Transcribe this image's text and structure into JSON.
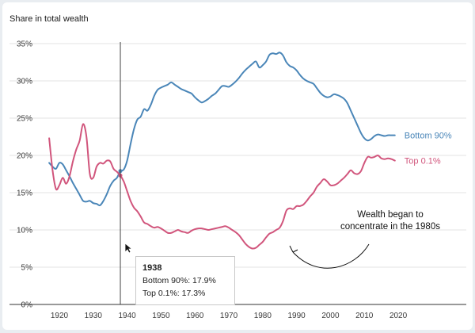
{
  "chart_data": {
    "type": "line",
    "ylabel": "Share in total wealth",
    "xlabel": "",
    "xlim": [
      1913,
      2034
    ],
    "ylim": [
      0,
      35
    ],
    "x_ticks": [
      1920,
      1930,
      1940,
      1950,
      1960,
      1970,
      1980,
      1990,
      2000,
      2010,
      2020
    ],
    "x_tick_labels": [
      "1920",
      "1930",
      "1940",
      "1950",
      "1960",
      "1970",
      "1980",
      "1990",
      "2000",
      "2010",
      "2020"
    ],
    "y_ticks": [
      0,
      5,
      10,
      15,
      20,
      25,
      30,
      35
    ],
    "y_tick_labels": [
      "0%",
      "5%",
      "10%",
      "15%",
      "20%",
      "25%",
      "30%",
      "35%"
    ],
    "grid": "horizontal",
    "series": [
      {
        "name": "Bottom 90%",
        "color": "#4a86b8",
        "x": [
          1917,
          1918,
          1919,
          1920,
          1921,
          1922,
          1923,
          1924,
          1925,
          1926,
          1927,
          1928,
          1929,
          1930,
          1931,
          1932,
          1933,
          1934,
          1935,
          1936,
          1937,
          1938,
          1939,
          1940,
          1941,
          1942,
          1943,
          1944,
          1945,
          1946,
          1947,
          1948,
          1949,
          1950,
          1951,
          1952,
          1953,
          1954,
          1955,
          1956,
          1957,
          1958,
          1959,
          1960,
          1961,
          1962,
          1963,
          1964,
          1965,
          1966,
          1967,
          1968,
          1969,
          1970,
          1971,
          1972,
          1973,
          1974,
          1975,
          1976,
          1977,
          1978,
          1979,
          1980,
          1981,
          1982,
          1983,
          1984,
          1985,
          1986,
          1987,
          1988,
          1989,
          1990,
          1991,
          1992,
          1993,
          1994,
          1995,
          1996,
          1997,
          1998,
          1999,
          2000,
          2001,
          2002,
          2003,
          2004,
          2005,
          2006,
          2007,
          2008,
          2009,
          2010,
          2011,
          2012,
          2013,
          2014,
          2015,
          2016,
          2017,
          2018,
          2019
        ],
        "y": [
          19.0,
          18.5,
          18.2,
          19.0,
          18.8,
          18.0,
          17.2,
          16.3,
          15.5,
          14.7,
          13.9,
          13.8,
          13.9,
          13.6,
          13.5,
          13.3,
          13.9,
          14.8,
          15.9,
          16.6,
          17.0,
          17.9,
          18.1,
          19.3,
          21.5,
          23.5,
          24.8,
          25.2,
          26.2,
          26.0,
          26.8,
          28.0,
          28.8,
          29.1,
          29.3,
          29.5,
          29.8,
          29.5,
          29.2,
          28.9,
          28.7,
          28.5,
          28.3,
          27.8,
          27.4,
          27.1,
          27.3,
          27.6,
          28.0,
          28.3,
          28.8,
          29.3,
          29.3,
          29.2,
          29.5,
          29.9,
          30.4,
          31.0,
          31.5,
          31.9,
          32.3,
          32.6,
          31.8,
          32.1,
          32.6,
          33.5,
          33.7,
          33.6,
          33.8,
          33.4,
          32.5,
          32.0,
          31.8,
          31.4,
          30.8,
          30.3,
          30.0,
          29.8,
          29.6,
          29.0,
          28.4,
          28.0,
          27.8,
          27.9,
          28.2,
          28.1,
          27.9,
          27.6,
          27.0,
          26.0,
          25.0,
          24.0,
          23.0,
          22.3,
          22.0,
          22.2,
          22.6,
          22.8,
          22.7,
          22.6,
          22.7,
          22.7,
          22.7
        ]
      },
      {
        "name": "Top 0.1%",
        "color": "#d1557c",
        "x": [
          1917,
          1918,
          1919,
          1920,
          1921,
          1922,
          1923,
          1924,
          1925,
          1926,
          1927,
          1928,
          1929,
          1930,
          1931,
          1932,
          1933,
          1934,
          1935,
          1936,
          1937,
          1938,
          1939,
          1940,
          1941,
          1942,
          1943,
          1944,
          1945,
          1946,
          1947,
          1948,
          1949,
          1950,
          1951,
          1952,
          1953,
          1954,
          1955,
          1956,
          1957,
          1958,
          1959,
          1960,
          1961,
          1962,
          1963,
          1964,
          1965,
          1966,
          1967,
          1968,
          1969,
          1970,
          1971,
          1972,
          1973,
          1974,
          1975,
          1976,
          1977,
          1978,
          1979,
          1980,
          1981,
          1982,
          1983,
          1984,
          1985,
          1986,
          1987,
          1988,
          1989,
          1990,
          1991,
          1992,
          1993,
          1994,
          1995,
          1996,
          1997,
          1998,
          1999,
          2000,
          2001,
          2002,
          2003,
          2004,
          2005,
          2006,
          2007,
          2008,
          2009,
          2010,
          2011,
          2012,
          2013,
          2014,
          2015,
          2016,
          2017,
          2018,
          2019
        ],
        "y": [
          22.3,
          18.0,
          15.5,
          16.0,
          17.0,
          16.2,
          17.2,
          19.2,
          20.8,
          22.0,
          24.2,
          22.5,
          17.5,
          17.0,
          18.5,
          19.0,
          18.9,
          19.3,
          19.2,
          18.2,
          17.8,
          17.3,
          16.5,
          15.2,
          13.9,
          13.0,
          12.5,
          11.8,
          11.0,
          10.8,
          10.5,
          10.3,
          10.4,
          10.2,
          9.9,
          9.6,
          9.6,
          9.8,
          10.0,
          9.8,
          9.7,
          9.6,
          9.9,
          10.1,
          10.2,
          10.2,
          10.1,
          10.0,
          10.1,
          10.2,
          10.3,
          10.4,
          10.5,
          10.3,
          10.0,
          9.7,
          9.3,
          8.7,
          8.1,
          7.7,
          7.5,
          7.6,
          8.0,
          8.4,
          9.0,
          9.5,
          9.7,
          10.0,
          10.3,
          11.2,
          12.6,
          12.9,
          12.8,
          13.2,
          13.2,
          13.4,
          13.9,
          14.5,
          15.0,
          15.8,
          16.3,
          16.8,
          16.5,
          16.0,
          16.0,
          16.2,
          16.6,
          17.0,
          17.5,
          18.0,
          17.6,
          17.5,
          17.9,
          19.0,
          19.8,
          19.7,
          19.8,
          20.0,
          19.6,
          19.5,
          19.6,
          19.5,
          19.3
        ]
      }
    ],
    "hover": {
      "x": 1938,
      "title": "1938",
      "lines": [
        "Bottom 90%: 17.9%",
        "Top 0.1%: 17.3%"
      ]
    },
    "annotation": {
      "lines": [
        "Wealth began to",
        "concentrate in the 1980s"
      ]
    },
    "colors": {
      "grid": "#e3e3e3",
      "axis": "#333333",
      "hover_line": "#444444"
    }
  }
}
